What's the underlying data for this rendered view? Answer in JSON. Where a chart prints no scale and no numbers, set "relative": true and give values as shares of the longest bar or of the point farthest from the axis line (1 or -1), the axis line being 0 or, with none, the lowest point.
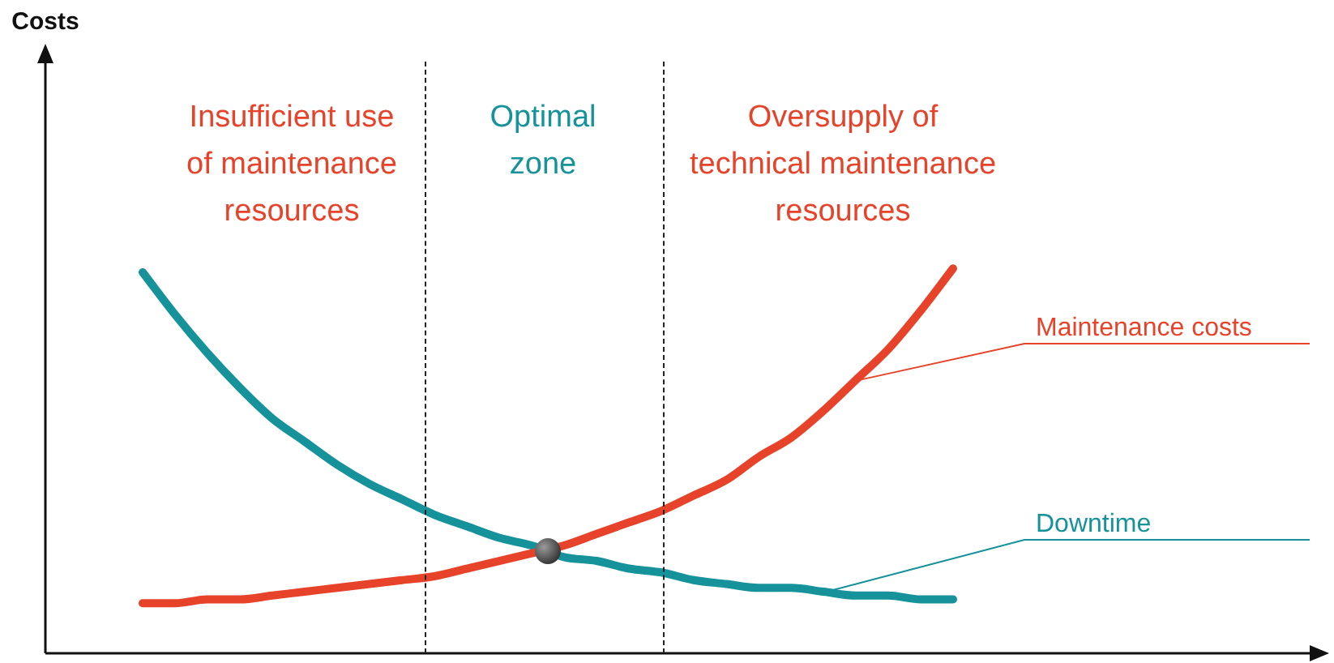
{
  "chart_data": {
    "type": "line",
    "relative": true,
    "legend": false,
    "marker": "none",
    "line_style": "solid",
    "tick_labels": false,
    "categories": [
      null,
      null,
      null,
      null,
      null,
      null,
      null,
      null,
      null,
      null,
      null,
      null,
      null,
      null,
      null,
      null,
      null,
      null,
      null,
      null,
      null,
      null,
      null,
      null,
      null,
      null,
      null,
      null,
      null,
      null,
      null,
      null,
      null,
      null,
      null,
      null,
      null,
      null,
      null,
      null
    ],
    "series": [
      {
        "name": "Maintenance costs",
        "color": "#e6432a",
        "values": [
          null,
          null,
          null,
          0.13,
          0.13,
          0.14,
          0.14,
          0.15,
          0.16,
          0.17,
          0.18,
          0.19,
          0.2,
          0.22,
          0.24,
          0.26,
          0.28,
          0.31,
          0.34,
          0.37,
          0.41,
          0.45,
          0.51,
          0.56,
          0.63,
          0.71,
          0.79,
          0.89,
          1,
          null,
          null,
          null,
          null,
          null,
          null,
          null,
          null,
          null,
          null,
          null
        ]
      },
      {
        "name": "Downtime",
        "color": "#16929a",
        "values": [
          null,
          null,
          null,
          0.99,
          0.88,
          0.78,
          0.69,
          0.61,
          0.55,
          0.49,
          0.44,
          0.4,
          0.36,
          0.33,
          0.3,
          0.28,
          0.25,
          0.24,
          0.22,
          0.21,
          0.19,
          0.18,
          0.17,
          0.17,
          0.16,
          0.15,
          0.15,
          0.14,
          0.14,
          null,
          null,
          null,
          null,
          null,
          null,
          null,
          null,
          null,
          null,
          null
        ]
      }
    ],
    "annotations": [
      "Insufficient use\nof maintenance\nresources",
      "Optimal\nzone",
      "Oversupply of\ntechnical maintenance\nresources",
      "Costs"
    ]
  }
}
